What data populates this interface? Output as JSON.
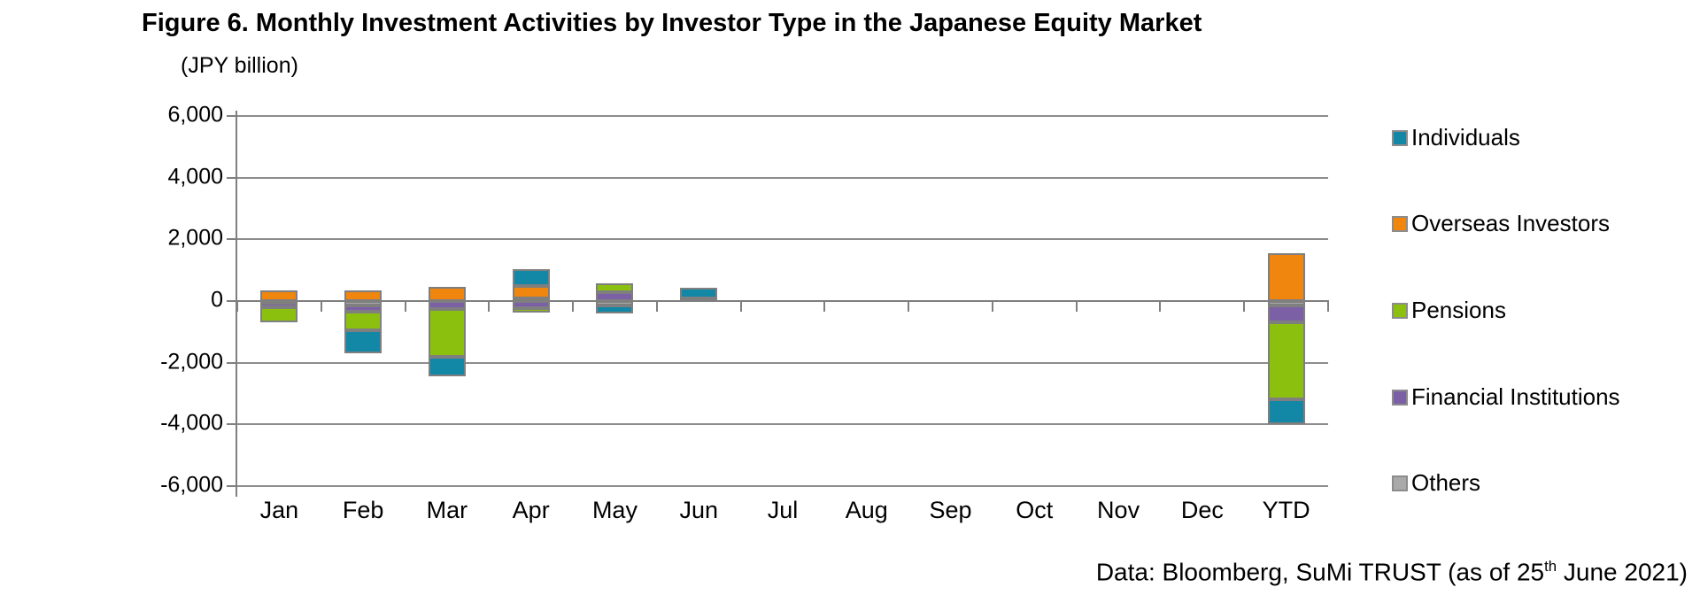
{
  "header": {
    "title": "Figure 6. Monthly Investment Activities by Investor Type in the Japanese Equity Market",
    "unit_label": "(JPY billion)"
  },
  "source": {
    "text_prefix": "Data: Bloomberg, SuMi TRUST (as of 25",
    "superscript": "th",
    "text_suffix": " June 2021)"
  },
  "chart_data": {
    "type": "bar",
    "subtype": "stacked-bar-with-negative-values",
    "title": "Figure 6. Monthly Investment Activities by Investor Type in the Japanese Equity Market",
    "ylabel": "(JPY billion)",
    "xlabel": "",
    "categories": [
      "Jan",
      "Feb",
      "Mar",
      "Apr",
      "May",
      "Jun",
      "Jul",
      "Aug",
      "Sep",
      "Oct",
      "Nov",
      "Dec",
      "YTD"
    ],
    "series": [
      {
        "name": "Individuals",
        "color": "#1287A6",
        "values": [
          0,
          -750,
          -650,
          520,
          -250,
          320,
          0,
          0,
          0,
          0,
          0,
          0,
          -810
        ]
      },
      {
        "name": "Overseas Investors",
        "color": "#F0860D",
        "values": [
          350,
          350,
          450,
          400,
          0,
          0,
          0,
          0,
          0,
          0,
          0,
          0,
          1550
        ]
      },
      {
        "name": "Pensions",
        "color": "#8BC10E",
        "values": [
          -500,
          -600,
          -1550,
          -150,
          300,
          0,
          0,
          0,
          0,
          0,
          0,
          0,
          -2500
        ]
      },
      {
        "name": "Financial Institutions",
        "color": "#7C60A5",
        "values": [
          -150,
          -200,
          -250,
          -220,
          280,
          0,
          0,
          0,
          0,
          0,
          0,
          0,
          -540
        ]
      },
      {
        "name": "Others",
        "color": "#A9A9A9",
        "values": [
          -50,
          -150,
          0,
          100,
          -150,
          100,
          0,
          0,
          0,
          0,
          0,
          0,
          -150
        ]
      }
    ],
    "stack_order_from_axis": [
      "Others",
      "Financial Institutions",
      "Pensions",
      "Overseas Investors",
      "Individuals"
    ],
    "ylim": [
      -6000,
      6000
    ],
    "ytick_values": [
      6000,
      4000,
      2000,
      0,
      -2000,
      -4000,
      -6000
    ],
    "ytick_labels": [
      "6,000",
      "4,000",
      "2,000",
      "0",
      "-2,000",
      "-4,000",
      "-6,000"
    ],
    "grid": true,
    "legend_position": "right",
    "bar_outline_color": "#7f7f7f"
  }
}
